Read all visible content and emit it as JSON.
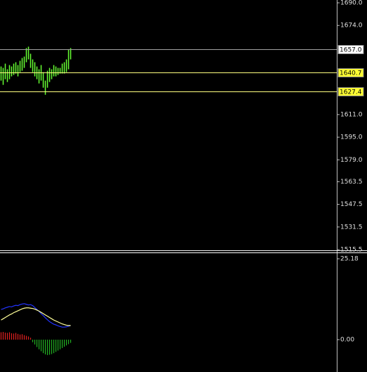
{
  "chart_data": [
    {
      "type": "candlestick",
      "color": "#66ff33",
      "high": [
        1645,
        1644,
        1647,
        1643,
        1646,
        1645,
        1647,
        1648,
        1646,
        1649,
        1651,
        1652,
        1658,
        1659,
        1654,
        1650,
        1648,
        1645,
        1643,
        1646,
        1641,
        1635,
        1642,
        1644,
        1643,
        1646,
        1645,
        1644,
        1644,
        1647,
        1648,
        1650,
        1657,
        1658
      ],
      "low": [
        1635,
        1632,
        1636,
        1634,
        1636,
        1638,
        1639,
        1640,
        1638,
        1641,
        1642,
        1644,
        1648,
        1650,
        1644,
        1641,
        1638,
        1636,
        1633,
        1635,
        1630,
        1625,
        1630,
        1634,
        1636,
        1638,
        1638,
        1639,
        1640,
        1640,
        1640,
        1641,
        1643,
        1650
      ],
      "ylim": [
        1514.0,
        1692.0
      ],
      "yticks": [
        {
          "value": 1690.0,
          "label": "1690.0"
        },
        {
          "value": 1674.0,
          "label": "1674.0"
        },
        {
          "value": 1611.0,
          "label": "1611.0"
        },
        {
          "value": 1595.0,
          "label": "1595.0"
        },
        {
          "value": 1579.0,
          "label": "1579.0"
        },
        {
          "value": 1563.5,
          "label": "1563.5"
        },
        {
          "value": 1547.5,
          "label": "1547.5"
        },
        {
          "value": 1531.5,
          "label": "1531.5"
        },
        {
          "value": 1515.5,
          "label": "1515.5"
        }
      ],
      "price_lines": [
        {
          "value": 1657.0,
          "label": "1657.0",
          "color": "#a0a0a0",
          "box": "#ffffff"
        },
        {
          "value": 1640.7,
          "label": "1640.7",
          "color": "#ffff80",
          "box": "#ffff33"
        },
        {
          "value": 1627.4,
          "label": "1627.4",
          "color": "#ffff80",
          "box": "#ffff33"
        }
      ]
    },
    {
      "type": "macd",
      "histogram": [
        2.3,
        2.4,
        2.2,
        2.1,
        2.3,
        2.0,
        1.9,
        2.1,
        1.8,
        1.6,
        1.7,
        1.4,
        1.2,
        1.0,
        0.6,
        -0.8,
        -1.5,
        -2.3,
        -3.0,
        -3.6,
        -4.2,
        -4.6,
        -4.8,
        -4.7,
        -4.5,
        -4.2,
        -3.8,
        -3.4,
        -3.0,
        -2.6,
        -2.2,
        -1.8,
        -1.4,
        -1.0
      ],
      "positive_color": "#e02020",
      "negative_color": "#22b022",
      "series": [
        {
          "color": "#2233ff",
          "values": [
            9.4,
            9.6,
            9.9,
            10.1,
            10.3,
            10.2,
            10.5,
            10.7,
            10.6,
            10.9,
            11.1,
            11.2,
            11.0,
            10.8,
            10.9,
            10.6,
            10.0,
            9.4,
            8.8,
            8.1,
            7.5,
            6.8,
            6.2,
            5.6,
            5.2,
            4.8,
            4.6,
            4.3,
            4.1,
            3.9,
            3.9,
            4.0,
            4.2,
            4.4
          ]
        },
        {
          "color": "#ffff99",
          "values": [
            6.1,
            6.5,
            6.9,
            7.3,
            7.7,
            8.0,
            8.4,
            8.7,
            9.0,
            9.3,
            9.6,
            9.8,
            9.9,
            9.9,
            9.8,
            9.7,
            9.5,
            9.2,
            8.9,
            8.5,
            8.1,
            7.7,
            7.3,
            6.9,
            6.5,
            6.1,
            5.8,
            5.5,
            5.2,
            4.9,
            4.7,
            4.5,
            4.4,
            4.4
          ]
        }
      ],
      "ylim": [
        -10.07,
        26.93
      ],
      "yticks": [
        {
          "value": 25.18,
          "label": "25.18"
        },
        {
          "value": 0.0,
          "label": "0.00"
        }
      ]
    }
  ]
}
